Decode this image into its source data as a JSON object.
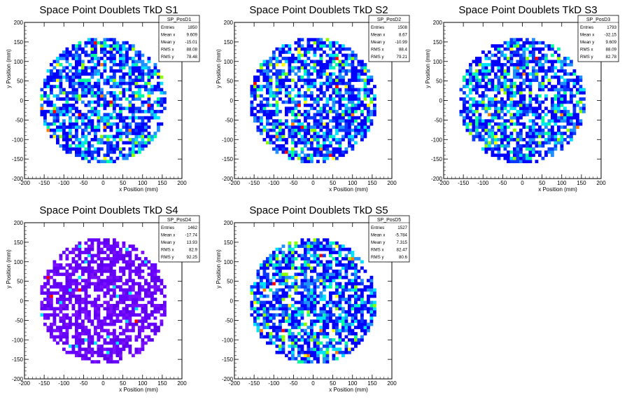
{
  "chart_data": [
    {
      "type": "heatmap",
      "title": "Space Point Doublets TkD S1",
      "xlabel": "x Position (mm)",
      "ylabel": "y Position (mm)",
      "xlim": [
        -200,
        200
      ],
      "ylim": [
        -200,
        200
      ],
      "xticks": [
        -200,
        -150,
        -100,
        -50,
        0,
        50,
        100,
        150,
        200
      ],
      "yticks": [
        -200,
        -150,
        -100,
        -50,
        0,
        50,
        100,
        150,
        200
      ],
      "palette": "rainbow",
      "stats": {
        "name": "SP_PosD1",
        "entries": "1850",
        "mean_x": "9.609",
        "mean_y": "-15.01",
        "rms_x": "88.08",
        "rms_y": "78.48"
      }
    },
    {
      "type": "heatmap",
      "title": "Space Point Doublets TkD S2",
      "xlabel": "x Position (mm)",
      "ylabel": "y Position (mm)",
      "xlim": [
        -200,
        200
      ],
      "ylim": [
        -200,
        200
      ],
      "xticks": [
        -200,
        -150,
        -100,
        -50,
        0,
        50,
        100,
        150,
        200
      ],
      "yticks": [
        -200,
        -150,
        -100,
        -50,
        0,
        50,
        100,
        150,
        200
      ],
      "palette": "rainbow",
      "stats": {
        "name": "SP_PosD2",
        "entries": "1508",
        "mean_x": "8.67",
        "mean_y": "-10.99",
        "rms_x": "88.4",
        "rms_y": "79.21"
      }
    },
    {
      "type": "heatmap",
      "title": "Space Point Doublets TkD S3",
      "xlabel": "x Position (mm)",
      "ylabel": "y Position (mm)",
      "xlim": [
        -200,
        200
      ],
      "ylim": [
        -200,
        200
      ],
      "xticks": [
        -200,
        -150,
        -100,
        -50,
        0,
        50,
        100,
        150,
        200
      ],
      "yticks": [
        -200,
        -150,
        -100,
        -50,
        0,
        50,
        100,
        150,
        200
      ],
      "palette": "rainbow",
      "stats": {
        "name": "SP_PosD3",
        "entries": "1793",
        "mean_x": "-32.15",
        "mean_y": "9.609",
        "rms_x": "88.09",
        "rms_y": "82.78"
      }
    },
    {
      "type": "heatmap",
      "title": "Space Point Doublets TkD S4",
      "xlabel": "x Position (mm)",
      "ylabel": "y Position (mm)",
      "xlim": [
        -200,
        200
      ],
      "ylim": [
        -200,
        200
      ],
      "xticks": [
        -200,
        -150,
        -100,
        -50,
        0,
        50,
        100,
        150,
        200
      ],
      "yticks": [
        -200,
        -150,
        -100,
        -50,
        0,
        50,
        100,
        150,
        200
      ],
      "palette": "purple",
      "stats": {
        "name": "SP_PosD4",
        "entries": "1462",
        "mean_x": "-17.74",
        "mean_y": "13.93",
        "rms_x": "82.9",
        "rms_y": "92.25"
      }
    },
    {
      "type": "heatmap",
      "title": "Space Point Doublets TkD S5",
      "xlabel": "x Position (mm)",
      "ylabel": "y Position (mm)",
      "xlim": [
        -200,
        200
      ],
      "ylim": [
        -200,
        200
      ],
      "xticks": [
        -200,
        -150,
        -100,
        -50,
        0,
        50,
        100,
        150,
        200
      ],
      "yticks": [
        -200,
        -150,
        -100,
        -50,
        0,
        50,
        100,
        150,
        200
      ],
      "palette": "rainbow",
      "stats": {
        "name": "SP_PosD5",
        "entries": "1527",
        "mean_x": "-5.784",
        "mean_y": "7.315",
        "rms_x": "82.47",
        "rms_y": "80.6"
      }
    }
  ],
  "stat_labels": {
    "entries": "Entries",
    "mean_x": "Mean x",
    "mean_y": "Mean y",
    "rms_x": "RMS x",
    "rms_y": "RMS y"
  },
  "colors": {
    "rainbow": [
      "#0000ff",
      "#0a3aff",
      "#1e90ff",
      "#00e0ff",
      "#00ff9c",
      "#8cff00",
      "#ffff00",
      "#ff8000",
      "#ff0000"
    ],
    "purple": [
      "#6600ff",
      "#7a10ff",
      "#5e00e8",
      "#8a2be2",
      "#00e0ff",
      "#ff0000"
    ]
  }
}
